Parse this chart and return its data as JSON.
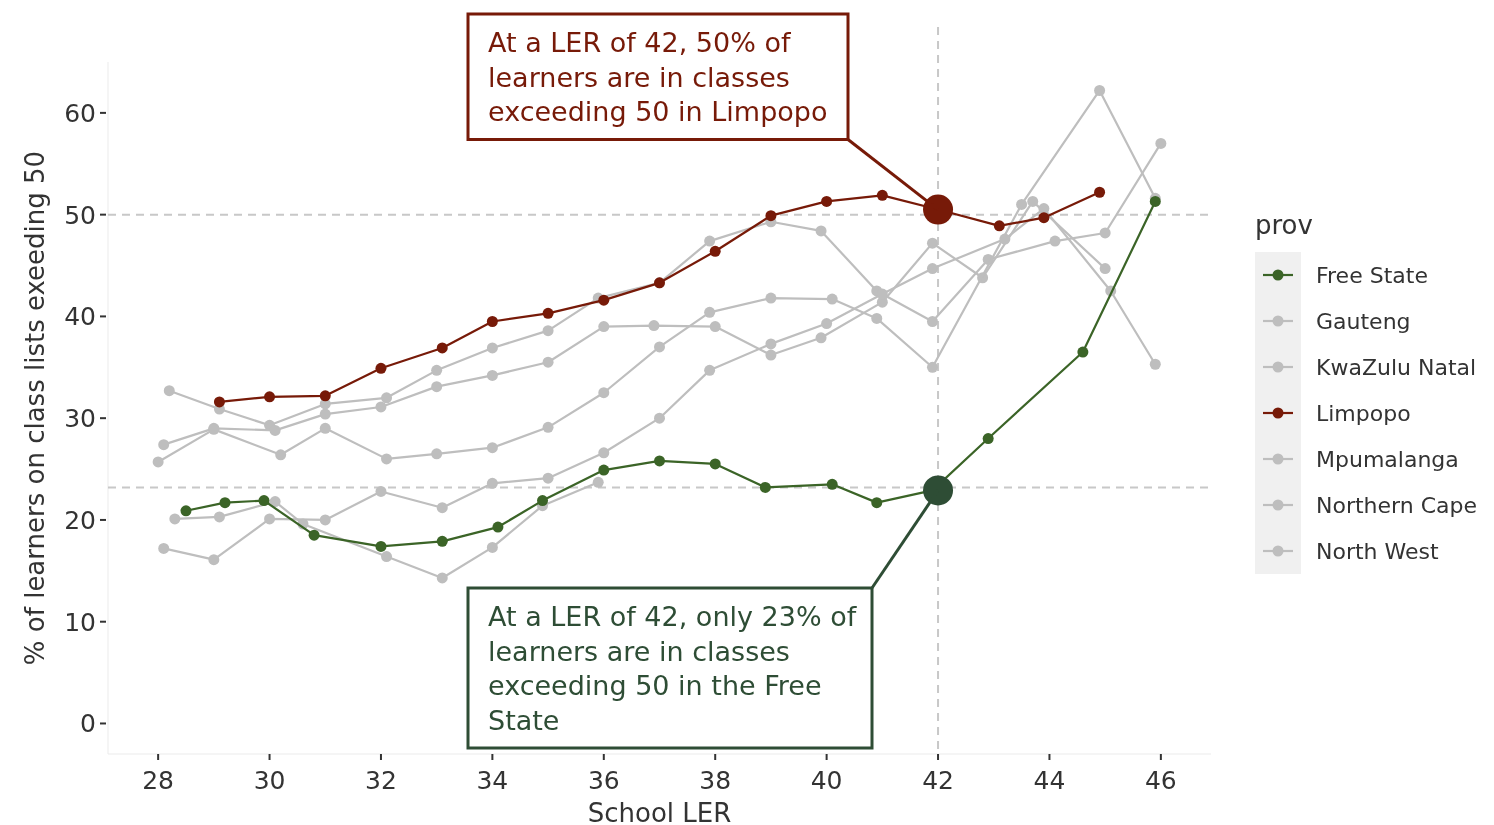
{
  "chart_data": {
    "type": "line",
    "xlabel": "School LER",
    "ylabel": "% of learners on class lists exeeding 50",
    "legend_title": "prov",
    "legend": "right",
    "marker": "circle",
    "grid": false,
    "xlim": [
      27.1,
      46.9
    ],
    "xticks": [
      28,
      30,
      32,
      34,
      36,
      38,
      40,
      42,
      44,
      46
    ],
    "ylim": [
      -3,
      65
    ],
    "yticks": [
      0,
      10,
      20,
      30,
      40,
      50,
      60
    ],
    "series": [
      {
        "name": "Free State",
        "color": "#3b6427",
        "x": [
          28.5,
          29.2,
          29.9,
          30.8,
          32.0,
          33.1,
          34.1,
          34.9,
          36.0,
          37.0,
          38.0,
          38.9,
          40.1,
          40.9,
          41.9,
          42.9,
          44.6,
          45.9
        ],
        "values": [
          20.9,
          21.7,
          21.9,
          18.5,
          17.4,
          17.9,
          19.3,
          21.9,
          24.9,
          25.8,
          25.5,
          23.2,
          23.5,
          21.7,
          22.9,
          28.0,
          36.5,
          51.3
        ]
      },
      {
        "name": "Gauteng",
        "color": "#bebebe",
        "x": [
          28.2,
          29.1,
          30.0,
          31.0,
          32.1,
          33.0,
          34.0,
          35.0,
          35.9,
          37.0,
          37.9,
          39.0,
          39.9,
          40.9,
          41.9,
          42.9,
          44.1,
          45.0,
          46.0
        ],
        "values": [
          32.7,
          30.9,
          29.3,
          31.4,
          32.0,
          34.7,
          36.9,
          38.6,
          41.8,
          43.3,
          47.4,
          49.3,
          48.4,
          42.5,
          39.5,
          45.6,
          47.4,
          48.2,
          57.0
        ]
      },
      {
        "name": "KwaZulu Natal",
        "color": "#bebebe",
        "x": [
          28.1,
          29.0,
          30.1,
          31.0,
          32.0,
          33.0,
          34.0,
          35.0,
          36.0,
          36.9,
          38.0,
          39.0,
          39.9,
          41.0,
          41.9,
          42.8,
          43.7,
          45.0
        ],
        "values": [
          27.4,
          29.0,
          28.8,
          30.4,
          31.1,
          33.1,
          34.2,
          35.5,
          39.0,
          39.1,
          39.0,
          36.2,
          37.9,
          41.4,
          47.2,
          43.8,
          51.3,
          44.7
        ]
      },
      {
        "name": "Limpopo",
        "color": "#771a08",
        "x": [
          29.1,
          30.0,
          31.0,
          32.0,
          33.1,
          34.0,
          35.0,
          36.0,
          37.0,
          38.0,
          39.0,
          40.0,
          41.0,
          42.0,
          43.1,
          43.9,
          44.9
        ],
        "values": [
          31.6,
          32.1,
          32.2,
          34.9,
          36.9,
          39.5,
          40.3,
          41.6,
          43.3,
          46.4,
          49.9,
          51.3,
          51.9,
          50.5,
          48.9,
          49.7,
          52.2
        ]
      },
      {
        "name": "Mpumalanga",
        "color": "#bebebe",
        "x": [
          28.0,
          29.0,
          30.2,
          31.0,
          32.1,
          33.0,
          34.0,
          35.0,
          36.0,
          37.0,
          37.9,
          39.0,
          40.1,
          40.9,
          41.9,
          43.5,
          44.9,
          45.9
        ],
        "values": [
          25.7,
          28.9,
          26.4,
          29.0,
          26.0,
          26.5,
          27.1,
          29.1,
          32.5,
          37.0,
          40.4,
          41.8,
          41.7,
          39.8,
          35.0,
          51.0,
          62.2,
          51.6
        ]
      },
      {
        "name": "Northern Cape",
        "color": "#bebebe",
        "x": [
          28.3,
          29.1,
          30.1,
          30.6,
          32.1,
          33.1,
          34.0,
          34.9,
          35.9
        ],
        "values": [
          20.1,
          20.3,
          21.8,
          19.6,
          16.4,
          14.3,
          17.3,
          21.4,
          23.7
        ]
      },
      {
        "name": "North West",
        "color": "#bebebe",
        "x": [
          28.1,
          29.0,
          30.0,
          31.0,
          32.0,
          33.1,
          34.0,
          35.0,
          36.0,
          37.0,
          37.9,
          39.0,
          40.0,
          41.0,
          41.9,
          43.2,
          43.9,
          45.1,
          45.9
        ],
        "values": [
          17.2,
          16.1,
          20.1,
          20.0,
          22.8,
          21.2,
          23.6,
          24.1,
          26.6,
          30.0,
          34.7,
          37.3,
          39.3,
          42.2,
          44.7,
          47.6,
          50.6,
          42.5,
          35.3
        ]
      },
      {
        "type": "scatter",
        "color": "#771a08",
        "x": [
          42.0
        ],
        "values": [
          50.5
        ]
      },
      {
        "type": "scatter",
        "color": "#2e4d35",
        "x": [
          42.0
        ],
        "values": [
          22.9
        ]
      }
    ],
    "ref_lines": [
      {
        "axis": "x",
        "value": 42,
        "color": "#c8c8c8",
        "line_style": "dashed"
      },
      {
        "axis": "y",
        "value": 50,
        "color": "#c8c8c8",
        "line_style": "dashed"
      },
      {
        "axis": "y",
        "value": 23.2,
        "color": "#c8c8c8",
        "line_style": "dashed"
      }
    ],
    "annotations": [
      {
        "text": "At a LER of 42, 50% of learners are in classes exceeding 50 in Limpopo",
        "x": 42,
        "y": 50.5
      },
      {
        "text": "At a LER of 42, only 23% of learners are in classes exceeding 50 in the Free State",
        "x": 42,
        "y": 22.9
      }
    ]
  }
}
